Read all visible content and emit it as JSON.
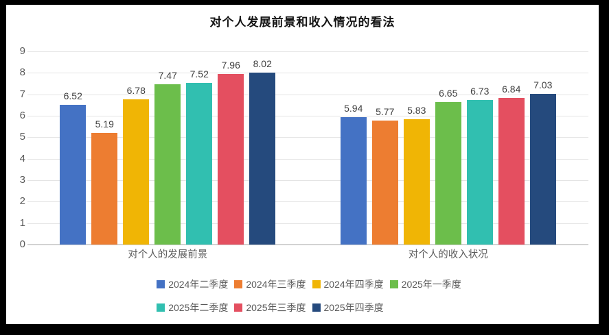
{
  "chart_data": {
    "type": "bar",
    "title": "对个人发展前景和收入情况的看法",
    "categories": [
      "对个人的发展前景",
      "对个人的收入状况"
    ],
    "series": [
      {
        "name": "2024年二季度",
        "color": "#4472C4",
        "values": [
          6.52,
          5.94
        ]
      },
      {
        "name": "2024年三季度",
        "color": "#ED7D31",
        "values": [
          5.19,
          5.77
        ]
      },
      {
        "name": "2024年四季度",
        "color": "#F0B505",
        "values": [
          6.78,
          5.83
        ]
      },
      {
        "name": "2025年一季度",
        "color": "#6CBE4B",
        "values": [
          7.47,
          6.65
        ]
      },
      {
        "name": "2025年二季度",
        "color": "#31BFB0",
        "values": [
          7.52,
          6.73
        ]
      },
      {
        "name": "2025年三季度",
        "color": "#E44F60",
        "values": [
          7.96,
          6.84
        ]
      },
      {
        "name": "2025年四季度",
        "color": "#254A7D",
        "values": [
          8.02,
          7.03
        ]
      }
    ],
    "ylim": [
      0,
      9
    ],
    "yticks": [
      0,
      1,
      2,
      3,
      4,
      5,
      6,
      7,
      8,
      9
    ],
    "grid": true,
    "value_labels": true,
    "legend_position": "bottom",
    "legend_rows": [
      4,
      3
    ],
    "colors": {
      "gridline": "#E4E4E4",
      "axis_line": "#D2D2D2",
      "tick_text": "#595959",
      "value_text": "#404040",
      "category_text": "#595959",
      "legend_text": "#595959",
      "title_text": "#141414",
      "frame": "#000000",
      "background": "#FFFFFF"
    }
  }
}
